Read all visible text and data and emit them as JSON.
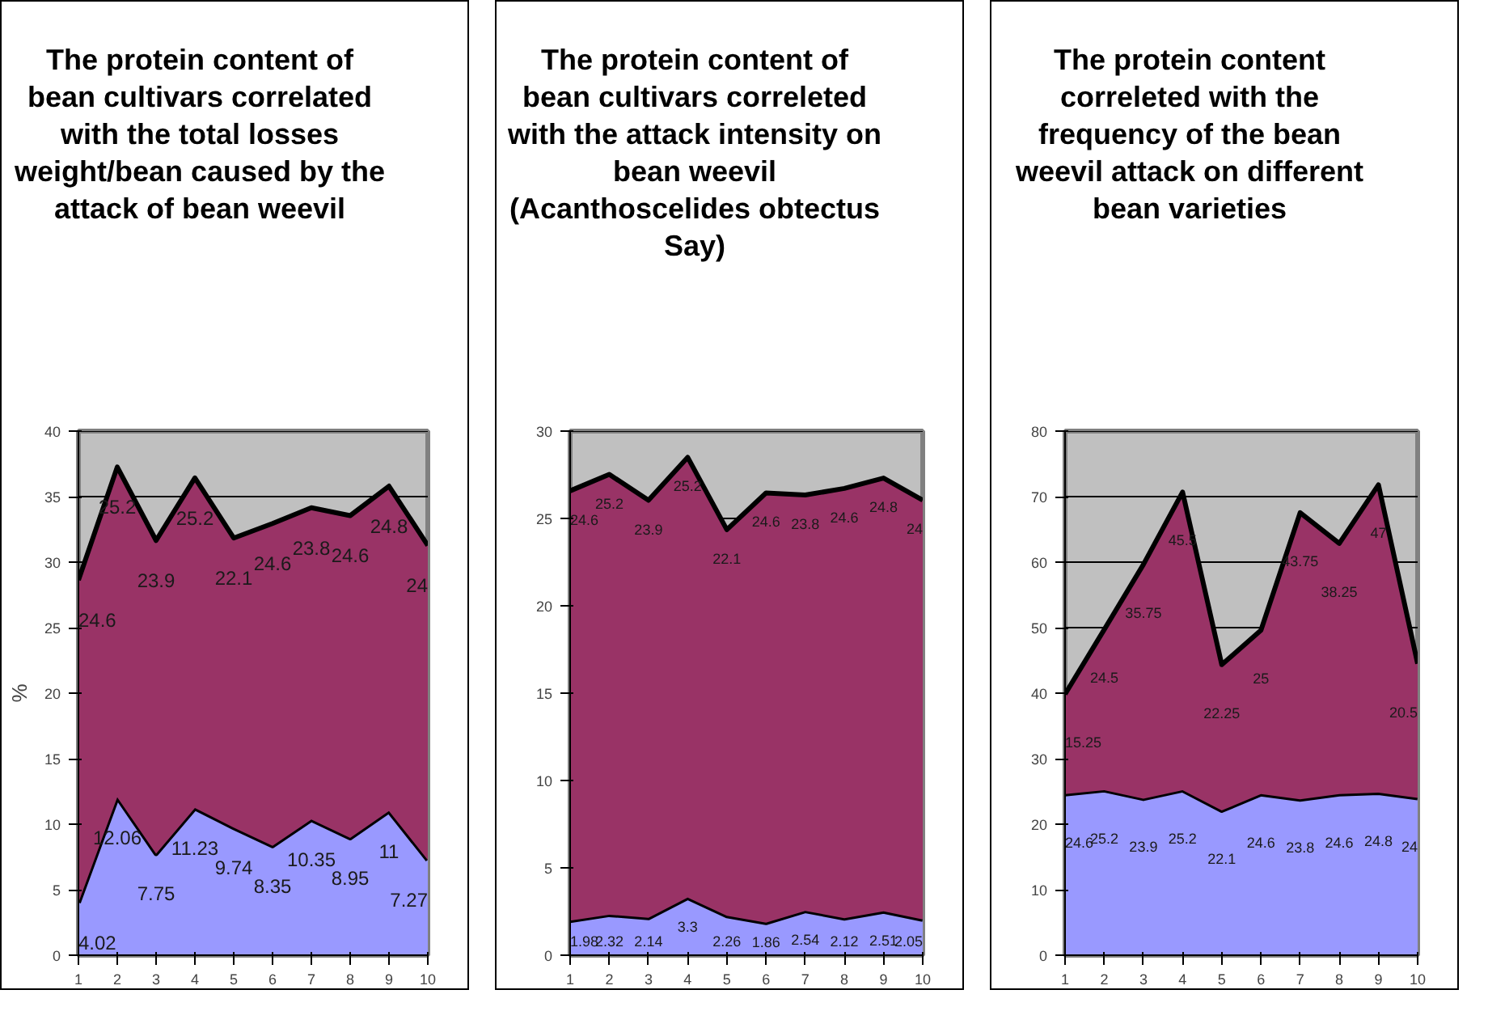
{
  "chart_data": [
    {
      "type": "area",
      "title": "The protein content of bean cultivars correlated with the total losses weight/bean caused by the attack of bean weevil",
      "ylabel": "%",
      "stacked": true,
      "data_labels": true,
      "grid": "y",
      "x": [
        1,
        2,
        3,
        4,
        5,
        6,
        7,
        8,
        9,
        10
      ],
      "xlim": [
        1,
        10
      ],
      "xticks": [
        1,
        2,
        3,
        4,
        5,
        6,
        7,
        8,
        9,
        10
      ],
      "ylim": [
        0,
        40
      ],
      "yticks": [
        0,
        5,
        10,
        15,
        20,
        25,
        30,
        35,
        40
      ],
      "series": [
        {
          "color": "#9999ff",
          "values": [
            4.02,
            12.06,
            7.75,
            11.23,
            9.74,
            8.35,
            10.35,
            8.95,
            11,
            7.27
          ]
        },
        {
          "color": "#993366",
          "values": [
            24.6,
            25.2,
            23.9,
            25.2,
            22.1,
            24.6,
            23.8,
            24.6,
            24.8,
            24
          ]
        }
      ]
    },
    {
      "type": "area",
      "title": "The protein content of bean cultivars correleted with the attack intensity on bean weevil (Acanthoscelides obtectus Say)",
      "stacked": true,
      "data_labels": true,
      "grid": "y",
      "x": [
        1,
        2,
        3,
        4,
        5,
        6,
        7,
        8,
        9,
        10
      ],
      "xlim": [
        1,
        10
      ],
      "xticks": [
        1,
        2,
        3,
        4,
        5,
        6,
        7,
        8,
        9,
        10
      ],
      "ylim": [
        0,
        30
      ],
      "yticks": [
        0,
        5,
        10,
        15,
        20,
        25,
        30
      ],
      "series": [
        {
          "color": "#9999ff",
          "values": [
            1.98,
            2.32,
            2.14,
            3.3,
            2.26,
            1.86,
            2.54,
            2.12,
            2.51,
            2.05
          ]
        },
        {
          "color": "#993366",
          "values": [
            24.6,
            25.2,
            23.9,
            25.2,
            22.1,
            24.6,
            23.8,
            24.6,
            24.8,
            24
          ]
        }
      ]
    },
    {
      "type": "area",
      "title": "The protein content correleted with the frequency of the bean weevil attack on different bean varieties",
      "stacked": true,
      "data_labels": true,
      "grid": "y",
      "x": [
        1,
        2,
        3,
        4,
        5,
        6,
        7,
        8,
        9,
        10
      ],
      "xlim": [
        1,
        10
      ],
      "xticks": [
        1,
        2,
        3,
        4,
        5,
        6,
        7,
        8,
        9,
        10
      ],
      "ylim": [
        0,
        80
      ],
      "yticks": [
        0,
        10,
        20,
        30,
        40,
        50,
        60,
        70,
        80
      ],
      "series": [
        {
          "color": "#9999ff",
          "values": [
            24.6,
            25.2,
            23.9,
            25.2,
            22.1,
            24.6,
            23.8,
            24.6,
            24.8,
            24
          ]
        },
        {
          "color": "#993366",
          "values": [
            15.25,
            24.5,
            35.75,
            45.5,
            22.25,
            25,
            43.75,
            38.25,
            47,
            20.5
          ]
        }
      ]
    }
  ]
}
